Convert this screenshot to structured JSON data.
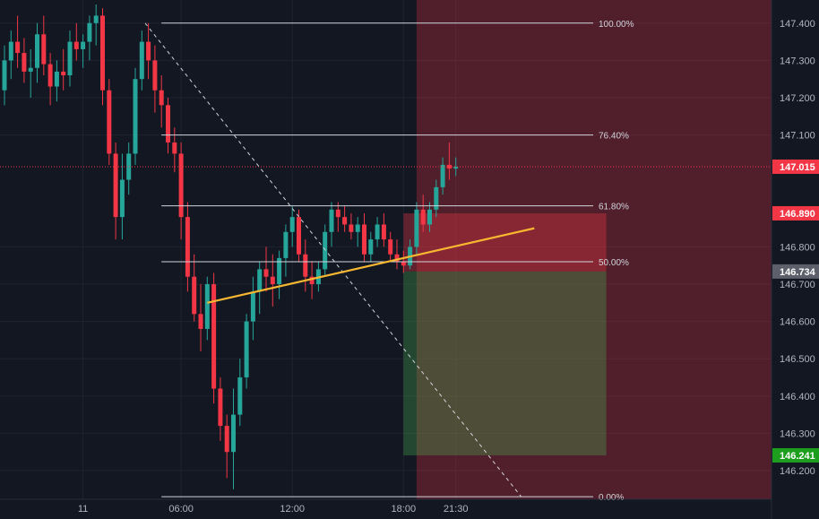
{
  "chart_data": {
    "type": "candlestick",
    "symbol_price_axis": {
      "ylim": [
        146.14,
        147.45
      ],
      "tick_labels": [
        "147.400",
        "147.300",
        "147.200",
        "147.100",
        "146.800",
        "146.700",
        "146.600",
        "146.500",
        "146.400",
        "146.300",
        "146.200"
      ],
      "tick_values": [
        147.4,
        147.3,
        147.2,
        147.1,
        146.8,
        146.7,
        146.6,
        146.5,
        146.4,
        146.3,
        146.2
      ]
    },
    "time_axis": {
      "tick_labels": [
        "11",
        "06:00",
        "12:00",
        "18:00",
        "21:30"
      ],
      "tick_index": [
        12,
        27,
        44,
        61,
        69
      ]
    },
    "price_tags": [
      {
        "label": "147.015",
        "value": 147.015,
        "color": "#f23645"
      },
      {
        "label": "146.890",
        "value": 146.89,
        "color": "#f23645"
      },
      {
        "label": "146.734",
        "value": 146.734,
        "color": "#5d606b"
      },
      {
        "label": "146.241",
        "value": 146.241,
        "color": "#1e9e1e"
      }
    ],
    "current_price": 147.015,
    "fibonacci": {
      "levels": [
        {
          "label": "100.00%",
          "value": 147.4
        },
        {
          "label": "76.40%",
          "value": 147.1
        },
        {
          "label": "61.80%",
          "value": 146.91
        },
        {
          "label": "50.00%",
          "value": 146.76
        },
        {
          "label": "0.00%",
          "value": 146.13
        }
      ]
    },
    "trendline": {
      "start": {
        "i": 31,
        "price": 146.65
      },
      "end": {
        "i": 81,
        "price": 146.85
      }
    },
    "diagonal": {
      "start": {
        "i": 21.5,
        "price": 147.4
      },
      "end": {
        "i": 79,
        "price": 146.13
      }
    },
    "position": {
      "entry": 146.734,
      "stop": 146.89,
      "target": 146.241,
      "start_i": 61,
      "end_i": 92
    },
    "highlight_zone": {
      "start_i": 63
    },
    "candles": {
      "columns": [
        "open",
        "high",
        "low",
        "close"
      ],
      "rows": [
        [
          147.22,
          147.34,
          147.18,
          147.3
        ],
        [
          147.3,
          147.38,
          147.25,
          147.35
        ],
        [
          147.35,
          147.42,
          147.28,
          147.32
        ],
        [
          147.32,
          147.36,
          147.24,
          147.27
        ],
        [
          147.27,
          147.33,
          147.2,
          147.28
        ],
        [
          147.28,
          147.4,
          147.24,
          147.37
        ],
        [
          147.37,
          147.42,
          147.26,
          147.29
        ],
        [
          147.29,
          147.32,
          147.18,
          147.23
        ],
        [
          147.23,
          147.3,
          147.19,
          147.27
        ],
        [
          147.27,
          147.33,
          147.22,
          147.26
        ],
        [
          147.26,
          147.38,
          147.23,
          147.35
        ],
        [
          147.35,
          147.4,
          147.3,
          147.33
        ],
        [
          147.33,
          147.37,
          147.28,
          147.35
        ],
        [
          147.35,
          147.42,
          147.3,
          147.4
        ],
        [
          147.4,
          147.45,
          147.34,
          147.42
        ],
        [
          147.42,
          147.44,
          147.18,
          147.22
        ],
        [
          147.22,
          147.25,
          147.02,
          147.05
        ],
        [
          147.05,
          147.08,
          146.82,
          146.88
        ],
        [
          146.88,
          147.05,
          146.82,
          146.98
        ],
        [
          146.98,
          147.08,
          146.94,
          147.05
        ],
        [
          147.05,
          147.28,
          147.02,
          147.25
        ],
        [
          147.25,
          147.38,
          147.22,
          147.35
        ],
        [
          147.35,
          147.4,
          147.25,
          147.3
        ],
        [
          147.3,
          147.34,
          147.16,
          147.22
        ],
        [
          147.22,
          147.26,
          147.12,
          147.18
        ],
        [
          147.18,
          147.2,
          147.05,
          147.08
        ],
        [
          147.08,
          147.12,
          147.0,
          147.05
        ],
        [
          147.05,
          147.08,
          146.82,
          146.88
        ],
        [
          146.88,
          146.92,
          146.68,
          146.72
        ],
        [
          146.72,
          146.78,
          146.6,
          146.62
        ],
        [
          146.62,
          146.7,
          146.52,
          146.58
        ],
        [
          146.58,
          146.72,
          146.55,
          146.7
        ],
        [
          146.7,
          146.73,
          146.38,
          146.42
        ],
        [
          146.42,
          146.45,
          146.28,
          146.32
        ],
        [
          146.32,
          146.35,
          146.18,
          146.25
        ],
        [
          146.25,
          146.42,
          146.15,
          146.35
        ],
        [
          146.35,
          146.5,
          146.32,
          146.45
        ],
        [
          146.45,
          146.62,
          146.42,
          146.6
        ],
        [
          146.6,
          146.72,
          146.55,
          146.68
        ],
        [
          146.68,
          146.76,
          146.62,
          146.74
        ],
        [
          146.74,
          146.8,
          146.68,
          146.72
        ],
        [
          146.72,
          146.78,
          146.64,
          146.7
        ],
        [
          146.7,
          146.79,
          146.66,
          146.77
        ],
        [
          146.77,
          146.86,
          146.72,
          146.84
        ],
        [
          146.84,
          146.91,
          146.8,
          146.88
        ],
        [
          146.88,
          146.9,
          146.76,
          146.78
        ],
        [
          146.78,
          146.82,
          146.68,
          146.72
        ],
        [
          146.72,
          146.76,
          146.66,
          146.7
        ],
        [
          146.7,
          146.76,
          146.68,
          146.74
        ],
        [
          146.74,
          146.86,
          146.72,
          146.84
        ],
        [
          146.84,
          146.92,
          146.8,
          146.9
        ],
        [
          146.9,
          146.92,
          146.84,
          146.88
        ],
        [
          146.88,
          146.91,
          146.84,
          146.86
        ],
        [
          146.86,
          146.89,
          146.82,
          146.84
        ],
        [
          146.84,
          146.88,
          146.8,
          146.86
        ],
        [
          146.86,
          146.89,
          146.76,
          146.78
        ],
        [
          146.78,
          146.84,
          146.76,
          146.82
        ],
        [
          146.82,
          146.88,
          146.8,
          146.86
        ],
        [
          146.86,
          146.89,
          146.8,
          146.82
        ],
        [
          146.82,
          146.84,
          146.76,
          146.78
        ],
        [
          146.78,
          146.82,
          146.74,
          146.76
        ],
        [
          146.76,
          146.79,
          146.73,
          146.75
        ],
        [
          146.75,
          146.82,
          146.74,
          146.8
        ],
        [
          146.8,
          146.92,
          146.78,
          146.9
        ],
        [
          146.9,
          146.94,
          146.84,
          146.86
        ],
        [
          146.86,
          146.92,
          146.84,
          146.9
        ],
        [
          146.9,
          146.98,
          146.88,
          146.96
        ],
        [
          146.96,
          147.04,
          146.94,
          147.02
        ],
        [
          147.02,
          147.08,
          146.98,
          147.01
        ],
        [
          147.01,
          147.04,
          146.99,
          147.015
        ]
      ]
    }
  }
}
